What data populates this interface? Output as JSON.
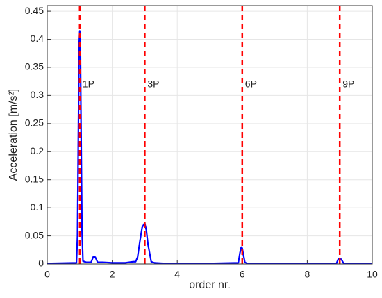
{
  "chart_data": {
    "type": "line",
    "xlabel": "order nr.",
    "ylabel": "Acceleration [m/s²]",
    "x": [
      0,
      0.9,
      0.93,
      0.96,
      0.98,
      1.0,
      1.02,
      1.04,
      1.07,
      1.1,
      1.2,
      1.35,
      1.42,
      1.48,
      1.55,
      1.7,
      2.0,
      2.4,
      2.65,
      2.72,
      2.78,
      2.85,
      2.92,
      3.0,
      3.05,
      3.1,
      3.2,
      3.3,
      3.6,
      4,
      5,
      5.88,
      5.93,
      5.97,
      6.0,
      6.04,
      6.08,
      6.15,
      7,
      8.9,
      8.95,
      9.0,
      9.05,
      9.12,
      10
    ],
    "series": [
      {
        "color": "#0000ff",
        "values": [
          0.001,
          0.002,
          0.05,
          0.25,
          0.39,
          0.415,
          0.4,
          0.25,
          0.06,
          0.005,
          0.003,
          0.003,
          0.013,
          0.012,
          0.003,
          0.003,
          0.002,
          0.002,
          0.004,
          0.004,
          0.012,
          0.04,
          0.065,
          0.073,
          0.06,
          0.035,
          0.004,
          0.002,
          0.001,
          0.001,
          0.001,
          0.002,
          0.02,
          0.03,
          0.028,
          0.015,
          0.003,
          0.001,
          0.001,
          0.001,
          0.008,
          0.01,
          0.008,
          0.001,
          0.001
        ]
      }
    ],
    "annotations": [
      {
        "x": 1,
        "label": "1P"
      },
      {
        "x": 3,
        "label": "3P"
      },
      {
        "x": 6,
        "label": "6P"
      },
      {
        "x": 9,
        "label": "9P"
      }
    ],
    "annotation_color": "#ff0000",
    "xlim": [
      0,
      10
    ],
    "xticks": [
      0,
      2,
      4,
      6,
      8,
      10
    ],
    "ylim": [
      0,
      0.46
    ],
    "yticks": [
      0,
      0.05,
      0.1,
      0.15,
      0.2,
      0.25,
      0.3,
      0.35,
      0.4,
      0.45
    ],
    "grid": true
  }
}
